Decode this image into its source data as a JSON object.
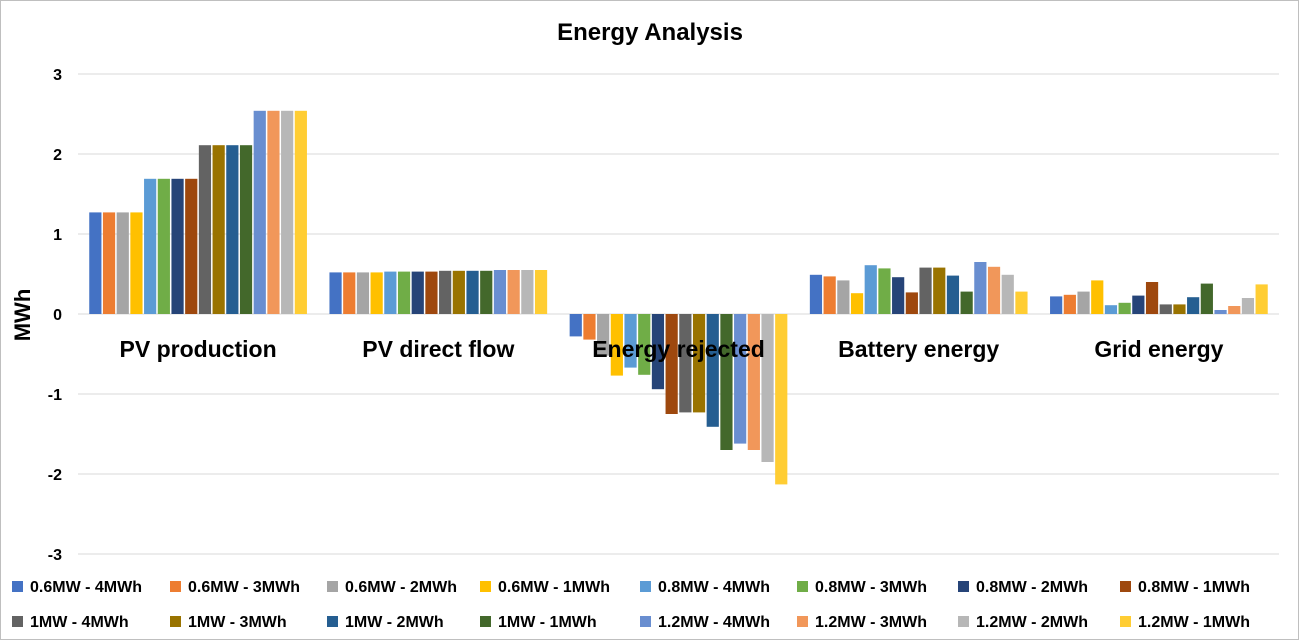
{
  "chart_data": {
    "type": "bar",
    "title": "Energy Analysis",
    "ylabel": "MWh",
    "xlabel": "",
    "ylim": [
      -3,
      3
    ],
    "yticks": [
      -3,
      -2,
      -1,
      0,
      1,
      2,
      3
    ],
    "grid": true,
    "legend_position": "bottom",
    "categories": [
      "PV production",
      "PV direct flow",
      "Energy rejected",
      "Battery energy",
      "Grid energy"
    ],
    "series": [
      {
        "name": "0.6MW - 4MWh",
        "color": "#4472C4",
        "values": [
          1.27,
          0.52,
          -0.28,
          0.49,
          0.22
        ]
      },
      {
        "name": "0.6MW - 3MWh",
        "color": "#ED7D31",
        "values": [
          1.27,
          0.52,
          -0.32,
          0.47,
          0.24
        ]
      },
      {
        "name": "0.6MW - 2MWh",
        "color": "#A5A5A5",
        "values": [
          1.27,
          0.52,
          -0.52,
          0.42,
          0.28
        ]
      },
      {
        "name": "0.6MW - 1MWh",
        "color": "#FFC000",
        "values": [
          1.27,
          0.52,
          -0.77,
          0.26,
          0.42
        ]
      },
      {
        "name": "0.8MW - 4MWh",
        "color": "#5B9BD5",
        "values": [
          1.69,
          0.53,
          -0.67,
          0.61,
          0.11
        ]
      },
      {
        "name": "0.8MW - 3MWh",
        "color": "#70AD47",
        "values": [
          1.69,
          0.53,
          -0.76,
          0.57,
          0.14
        ]
      },
      {
        "name": "0.8MW - 2MWh",
        "color": "#264478",
        "values": [
          1.69,
          0.53,
          -0.94,
          0.46,
          0.23
        ]
      },
      {
        "name": "0.8MW - 1MWh",
        "color": "#9E480E",
        "values": [
          1.69,
          0.53,
          -1.25,
          0.27,
          0.4
        ]
      },
      {
        "name": "1MW - 4MWh",
        "color": "#636363",
        "values": [
          2.11,
          0.54,
          -1.23,
          0.58,
          0.12
        ]
      },
      {
        "name": "1MW - 3MWh",
        "color": "#997300",
        "values": [
          2.11,
          0.54,
          -1.23,
          0.58,
          0.12
        ]
      },
      {
        "name": "1MW - 2MWh",
        "color": "#255E91",
        "values": [
          2.11,
          0.54,
          -1.41,
          0.48,
          0.21
        ]
      },
      {
        "name": "1MW - 1MWh",
        "color": "#43682B",
        "values": [
          2.11,
          0.54,
          -1.7,
          0.28,
          0.38
        ]
      },
      {
        "name": "1.2MW - 4MWh",
        "color": "#698ED0",
        "values": [
          2.54,
          0.55,
          -1.62,
          0.65,
          0.05
        ]
      },
      {
        "name": "1.2MW - 3MWh",
        "color": "#F1975A",
        "values": [
          2.54,
          0.55,
          -1.7,
          0.59,
          0.1
        ]
      },
      {
        "name": "1.2MW - 2MWh",
        "color": "#B7B7B7",
        "values": [
          2.54,
          0.55,
          -1.85,
          0.49,
          0.2
        ]
      },
      {
        "name": "1.2MW - 1MWh",
        "color": "#FFCD33",
        "values": [
          2.54,
          0.55,
          -2.13,
          0.28,
          0.37
        ]
      }
    ]
  }
}
